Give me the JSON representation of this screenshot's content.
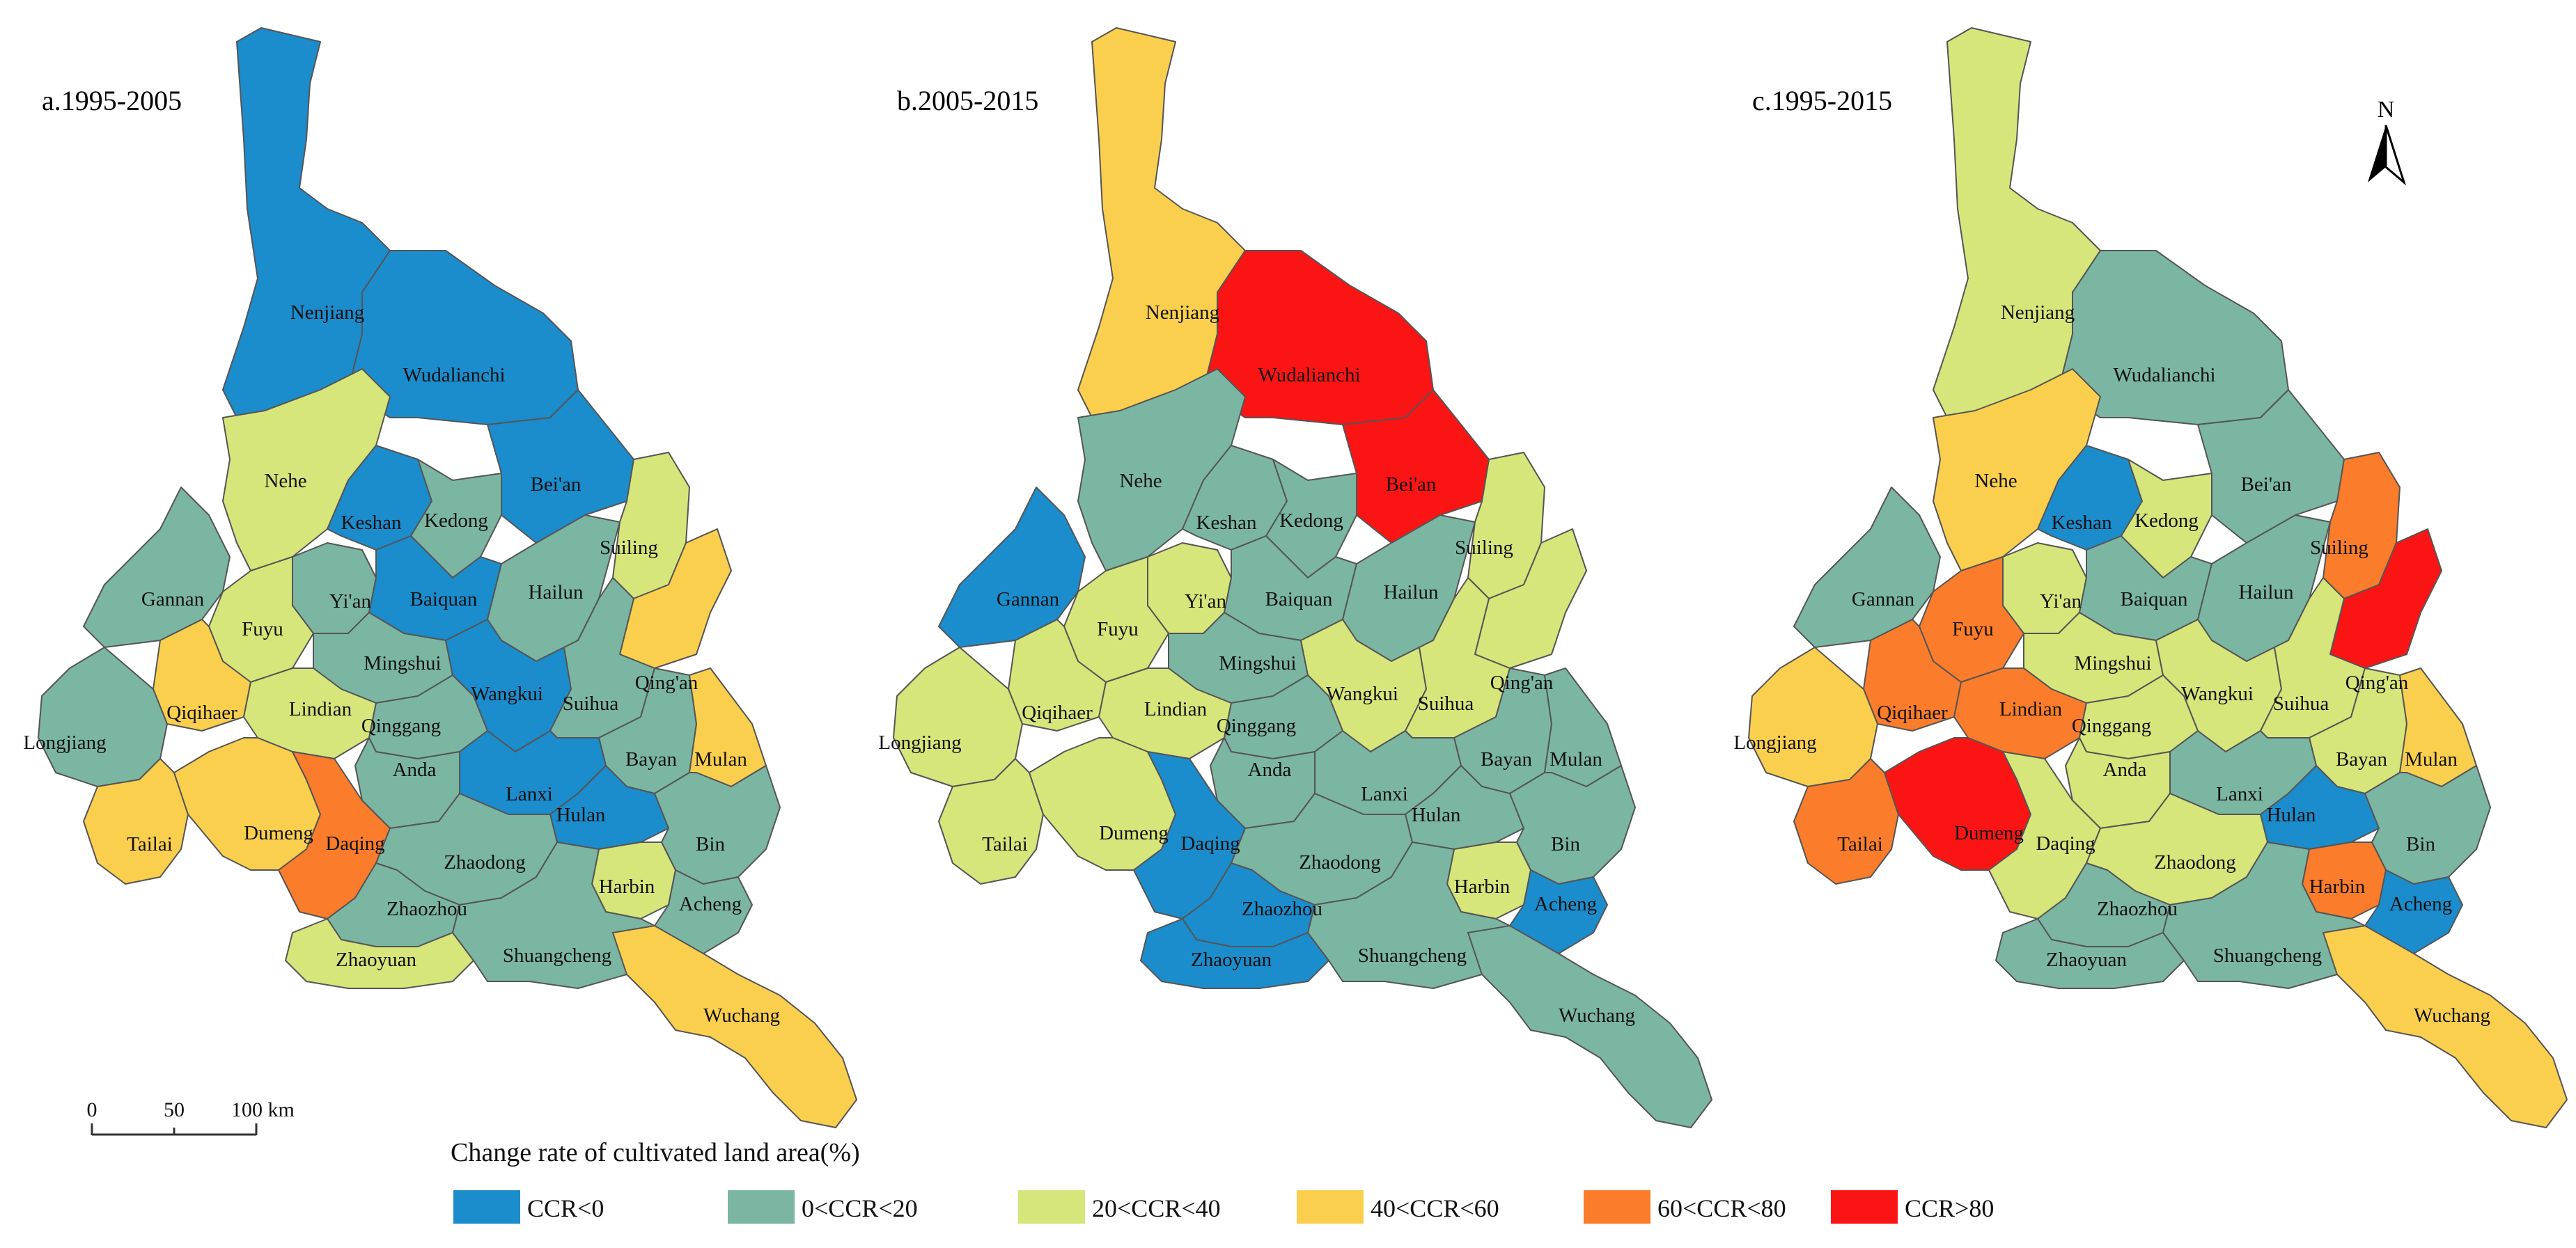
{
  "colors": {
    "c0": "#1b8ccc",
    "c1": "#7bb6a2",
    "c2": "#d6e67a",
    "c3": "#fbcf4e",
    "c4": "#fb7c2a",
    "c5": "#fb1414"
  },
  "panels": [
    {
      "title": "a.1995-2005",
      "classes": {
        "Nenjiang": "c0",
        "Wudalianchi": "c0",
        "Nehe": "c2",
        "Bei'an": "c0",
        "Keshan": "c0",
        "Kedong": "c1",
        "Gannan": "c1",
        "Yi'an": "c1",
        "Baiquan": "c0",
        "Hailun": "c1",
        "Suiling": "c2",
        "Fuyu": "c2",
        "Mingshui": "c1",
        "Qing'an": "c3",
        "Qiqihaer": "c3",
        "Lindian": "c2",
        "Wangkui": "c0",
        "Suihua": "c1",
        "Longjiang": "c1",
        "Qinggang": "c1",
        "Anda": "c1",
        "Bayan": "c1",
        "Mulan": "c3",
        "Lanxi": "c0",
        "Hulan": "c0",
        "Tailai": "c3",
        "Dumeng": "c3",
        "Daqing": "c4",
        "Zhaodong": "c1",
        "Bin": "c1",
        "Harbin": "c2",
        "Acheng": "c1",
        "Zhaozhou": "c1",
        "Zhaoyuan": "c2",
        "Shuangcheng": "c1",
        "Wuchang": "c3"
      }
    },
    {
      "title": "b.2005-2015",
      "classes": {
        "Nenjiang": "c3",
        "Wudalianchi": "c5",
        "Nehe": "c1",
        "Bei'an": "c5",
        "Keshan": "c1",
        "Kedong": "c1",
        "Gannan": "c0",
        "Yi'an": "c2",
        "Baiquan": "c1",
        "Hailun": "c1",
        "Suiling": "c2",
        "Fuyu": "c2",
        "Mingshui": "c1",
        "Qing'an": "c2",
        "Qiqihaer": "c2",
        "Lindian": "c2",
        "Wangkui": "c2",
        "Suihua": "c2",
        "Longjiang": "c2",
        "Qinggang": "c1",
        "Anda": "c1",
        "Bayan": "c1",
        "Mulan": "c1",
        "Lanxi": "c1",
        "Hulan": "c1",
        "Tailai": "c2",
        "Dumeng": "c2",
        "Daqing": "c0",
        "Zhaodong": "c1",
        "Bin": "c1",
        "Harbin": "c2",
        "Acheng": "c0",
        "Zhaozhou": "c0",
        "Zhaoyuan": "c0",
        "Shuangcheng": "c1",
        "Wuchang": "c1"
      }
    },
    {
      "title": "c.1995-2015",
      "classes": {
        "Nenjiang": "c2",
        "Wudalianchi": "c1",
        "Nehe": "c3",
        "Bei'an": "c1",
        "Keshan": "c0",
        "Kedong": "c2",
        "Gannan": "c1",
        "Yi'an": "c2",
        "Baiquan": "c1",
        "Hailun": "c1",
        "Suiling": "c4",
        "Fuyu": "c4",
        "Mingshui": "c2",
        "Qing'an": "c5",
        "Qiqihaer": "c4",
        "Lindian": "c4",
        "Wangkui": "c2",
        "Suihua": "c2",
        "Longjiang": "c3",
        "Qinggang": "c2",
        "Anda": "c2",
        "Bayan": "c2",
        "Mulan": "c3",
        "Lanxi": "c1",
        "Hulan": "c0",
        "Tailai": "c4",
        "Dumeng": "c5",
        "Daqing": "c2",
        "Zhaodong": "c2",
        "Bin": "c1",
        "Harbin": "c4",
        "Acheng": "c0",
        "Zhaozhou": "c1",
        "Zhaoyuan": "c1",
        "Shuangcheng": "c1",
        "Wuchang": "c3"
      }
    }
  ],
  "north_label": "N",
  "scale_bar": {
    "ticks": [
      "0",
      "50",
      "100 km"
    ]
  },
  "legend": {
    "title": "Change rate of cultivated land area(%)",
    "items": [
      {
        "label": "CCR<0",
        "class": "c0"
      },
      {
        "label": "0<CCR<20",
        "class": "c1"
      },
      {
        "label": "20<CCR<40",
        "class": "c2"
      },
      {
        "label": "40<CCR<60",
        "class": "c3"
      },
      {
        "label": "60<CCR<80",
        "class": "c4"
      },
      {
        "label": "CCR>80",
        "class": "c5"
      }
    ]
  }
}
